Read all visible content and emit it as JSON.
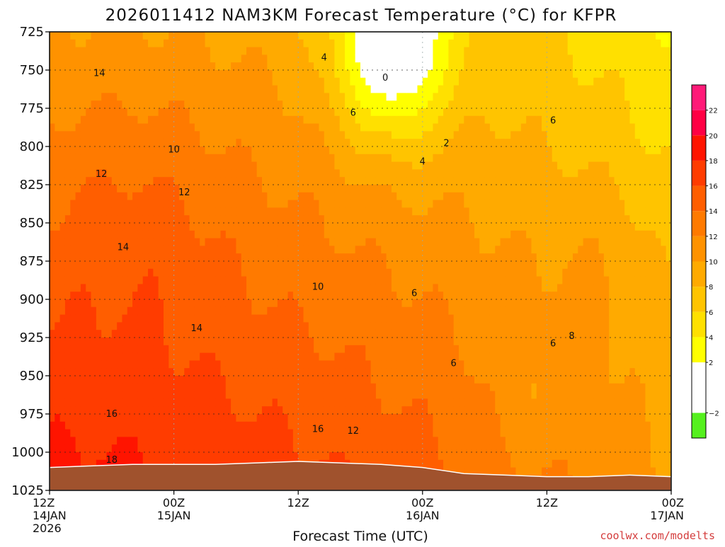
{
  "chart_data": {
    "type": "heatmap",
    "title": "2026011412 NAM3KM Forecast Temperature (°C) for KFPR",
    "xlabel": "Forecast Time (UTC)",
    "ylabel": "",
    "credit": "coolwx.com/modelts",
    "x_ticks": [
      {
        "hour": 0,
        "lines": [
          "12Z",
          "14JAN",
          "2026"
        ]
      },
      {
        "hour": 12,
        "lines": [
          "00Z",
          "15JAN"
        ]
      },
      {
        "hour": 24,
        "lines": [
          "12Z"
        ]
      },
      {
        "hour": 36,
        "lines": [
          "00Z",
          "16JAN"
        ]
      },
      {
        "hour": 48,
        "lines": [
          "12Z"
        ]
      },
      {
        "hour": 60,
        "lines": [
          "00Z",
          "17JAN"
        ]
      }
    ],
    "xlim": [
      0,
      60
    ],
    "y_ticks": [
      725,
      750,
      775,
      800,
      825,
      850,
      875,
      900,
      925,
      950,
      975,
      1000,
      1025
    ],
    "ylim": [
      725,
      1025
    ],
    "ground_pressure": [
      [
        0,
        1010
      ],
      [
        4,
        1009
      ],
      [
        8,
        1008
      ],
      [
        12,
        1008
      ],
      [
        16,
        1008
      ],
      [
        20,
        1007
      ],
      [
        24,
        1006
      ],
      [
        28,
        1007
      ],
      [
        32,
        1008
      ],
      [
        36,
        1010
      ],
      [
        40,
        1014
      ],
      [
        44,
        1015
      ],
      [
        48,
        1016
      ],
      [
        52,
        1016
      ],
      [
        56,
        1015
      ],
      [
        60,
        1016
      ]
    ],
    "colorbar": {
      "ticks": [
        -2,
        2,
        4,
        6,
        8,
        10,
        12,
        14,
        16,
        18,
        20,
        22
      ],
      "bins": [
        {
          "lo": -4,
          "hi": -2,
          "color": "#55f01e"
        },
        {
          "lo": -2,
          "hi": 2,
          "color": "#ffffff"
        },
        {
          "lo": 2,
          "hi": 4,
          "color": "#ffff00"
        },
        {
          "lo": 4,
          "hi": 6,
          "color": "#ffe000"
        },
        {
          "lo": 6,
          "hi": 8,
          "color": "#ffc400"
        },
        {
          "lo": 8,
          "hi": 10,
          "color": "#ffaa00"
        },
        {
          "lo": 10,
          "hi": 12,
          "color": "#ff9200"
        },
        {
          "lo": 12,
          "hi": 14,
          "color": "#ff7a00"
        },
        {
          "lo": 14,
          "hi": 16,
          "color": "#ff5e00"
        },
        {
          "lo": 16,
          "hi": 18,
          "color": "#ff3c00"
        },
        {
          "lo": 18,
          "hi": 20,
          "color": "#ff1400"
        },
        {
          "lo": 20,
          "hi": 22,
          "color": "#ff0044"
        },
        {
          "lo": 22,
          "hi": 24,
          "color": "#ff1a78"
        }
      ]
    },
    "ground_color": "#a0522d",
    "contour_labels": [
      {
        "text": "4",
        "hour": 26.5,
        "p": 742
      },
      {
        "text": "0",
        "hour": 32.4,
        "p": 755
      },
      {
        "text": "6",
        "hour": 29.3,
        "p": 778
      },
      {
        "text": "2",
        "hour": 38.3,
        "p": 798
      },
      {
        "text": "14",
        "hour": 4.8,
        "p": 752
      },
      {
        "text": "10",
        "hour": 12.0,
        "p": 802
      },
      {
        "text": "4",
        "hour": 36.0,
        "p": 810
      },
      {
        "text": "12",
        "hour": 5.0,
        "p": 818
      },
      {
        "text": "12",
        "hour": 13.0,
        "p": 830
      },
      {
        "text": "6",
        "hour": 48.6,
        "p": 783
      },
      {
        "text": "14",
        "hour": 7.1,
        "p": 866
      },
      {
        "text": "10",
        "hour": 25.9,
        "p": 892
      },
      {
        "text": "6",
        "hour": 35.2,
        "p": 896
      },
      {
        "text": "14",
        "hour": 14.2,
        "p": 919
      },
      {
        "text": "8",
        "hour": 50.4,
        "p": 924
      },
      {
        "text": "6",
        "hour": 48.6,
        "p": 929
      },
      {
        "text": "6",
        "hour": 39.0,
        "p": 942
      },
      {
        "text": "16",
        "hour": 6.0,
        "p": 975
      },
      {
        "text": "16",
        "hour": 25.9,
        "p": 985
      },
      {
        "text": "12",
        "hour": 29.3,
        "p": 986
      },
      {
        "text": "18",
        "hour": 6.0,
        "p": 1005
      }
    ]
  }
}
